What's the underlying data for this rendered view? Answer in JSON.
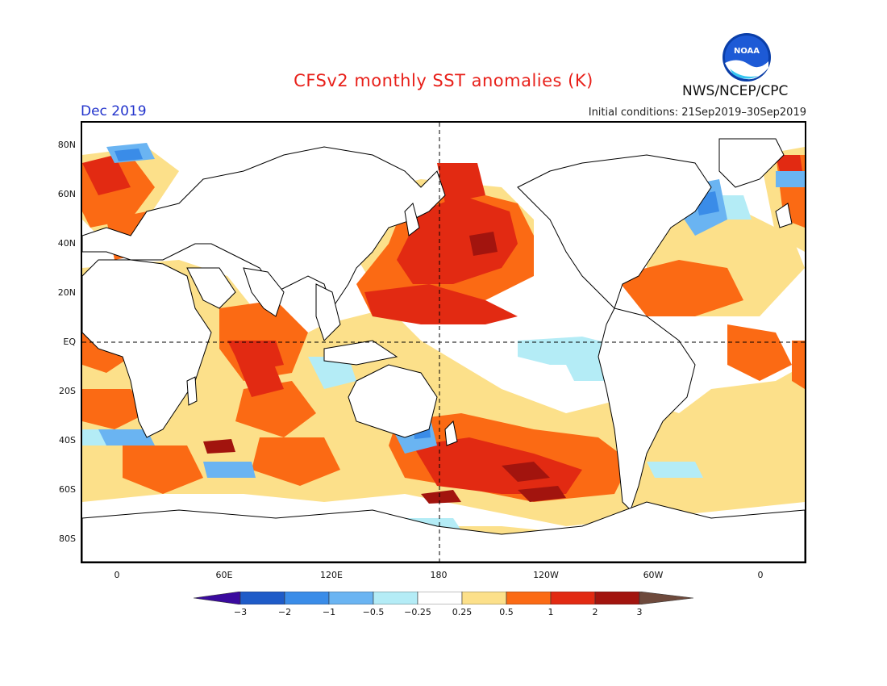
{
  "header": {
    "title": "CFSv2 monthly SST anomalies (K)",
    "month": "Dec 2019",
    "initial_conditions": "Initial conditions: 21Sep2019–30Sep2019",
    "organization": "NWS/NCEP/CPC",
    "logo_text": "NOAA"
  },
  "map": {
    "lat_labels": [
      "80N",
      "60N",
      "40N",
      "20N",
      "EQ",
      "20S",
      "40S",
      "60S",
      "80S"
    ],
    "lon_labels": [
      "0",
      "60E",
      "120E",
      "180",
      "120W",
      "60W",
      "0"
    ]
  },
  "colorbar": {
    "tick_labels": [
      "−3",
      "−2",
      "−1",
      "−0.5",
      "−0.25",
      "0.25",
      "0.5",
      "1",
      "2",
      "3"
    ],
    "colors": [
      "#3a0a9e",
      "#1e5bc8",
      "#3a8ce8",
      "#6ab4f2",
      "#b4ecf6",
      "#ffffff",
      "#fce08a",
      "#fb6a14",
      "#e22a12",
      "#a2140e",
      "#6e4a3c"
    ]
  }
}
